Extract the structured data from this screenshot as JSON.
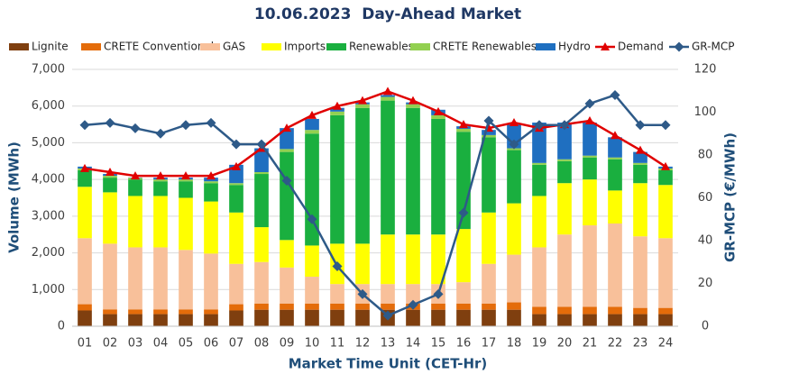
{
  "chart_data": {
    "type": "stacked-bar-line",
    "title": "10.06.2023  Day-Ahead Market",
    "x_label": "Market Time Unit (CET-Hr)",
    "y_label": "Volume (MWh)",
    "y2_label": "GR-MCP (€/MWh)",
    "categories": [
      "01",
      "02",
      "03",
      "04",
      "05",
      "06",
      "07",
      "08",
      "09",
      "10",
      "11",
      "12",
      "13",
      "14",
      "15",
      "16",
      "17",
      "18",
      "19",
      "20",
      "21",
      "22",
      "23",
      "24"
    ],
    "ylim": [
      0,
      7000
    ],
    "yticks": [
      0,
      {
        "value": 1000,
        "label": "1,000"
      },
      {
        "value": 2000,
        "label": "2,000"
      },
      {
        "value": 3000,
        "label": "3,000"
      },
      {
        "value": 4000,
        "label": "4,000"
      },
      {
        "value": 5000,
        "label": "5,000"
      },
      {
        "value": 6000,
        "label": "6,000"
      },
      {
        "value": 7000,
        "label": "7,000"
      }
    ],
    "y2lim": [
      0,
      120
    ],
    "y2ticks": [
      0,
      20,
      40,
      60,
      80,
      100,
      120
    ],
    "grid": true,
    "series": [
      {
        "name": "Lignite",
        "color": "#7f3f0f",
        "kind": "bar",
        "values": [
          430,
          330,
          330,
          330,
          330,
          330,
          430,
          450,
          450,
          450,
          450,
          450,
          450,
          450,
          450,
          450,
          450,
          450,
          330,
          330,
          330,
          330,
          330,
          330
        ]
      },
      {
        "name": "CRETE Conventional",
        "color": "#e46c0a",
        "kind": "bar",
        "values": [
          170,
          130,
          130,
          130,
          130,
          130,
          170,
          170,
          170,
          170,
          170,
          170,
          170,
          170,
          170,
          170,
          170,
          200,
          200,
          200,
          200,
          200,
          170,
          170
        ]
      },
      {
        "name": "GAS",
        "color": "#f8c09a",
        "kind": "bar",
        "values": [
          1800,
          1790,
          1690,
          1690,
          1620,
          1520,
          1100,
          1130,
          980,
          730,
          530,
          530,
          530,
          530,
          530,
          580,
          1080,
          1300,
          1620,
          1970,
          2220,
          2270,
          1950,
          1900
        ]
      },
      {
        "name": "Imports",
        "color": "#ffff00",
        "kind": "bar",
        "values": [
          1400,
          1400,
          1400,
          1400,
          1420,
          1420,
          1400,
          950,
          750,
          850,
          1100,
          1100,
          1350,
          1350,
          1350,
          1450,
          1400,
          1400,
          1400,
          1400,
          1250,
          900,
          1450,
          1450
        ]
      },
      {
        "name": "Renewables",
        "color": "#1aaf3f",
        "kind": "bar",
        "values": [
          450,
          400,
          450,
          400,
          450,
          500,
          750,
          1450,
          2400,
          3050,
          3500,
          3700,
          3650,
          3450,
          3150,
          2650,
          2050,
          1450,
          850,
          600,
          600,
          850,
          500,
          400
        ]
      },
      {
        "name": "CRETE Renewables",
        "color": "#92d050",
        "kind": "bar",
        "values": [
          50,
          50,
          40,
          50,
          50,
          50,
          50,
          50,
          80,
          100,
          100,
          100,
          100,
          100,
          100,
          80,
          60,
          50,
          50,
          50,
          50,
          50,
          50,
          50
        ]
      },
      {
        "name": "Hydro",
        "color": "#1f6fc0",
        "kind": "bar",
        "values": [
          50,
          50,
          10,
          50,
          50,
          100,
          500,
          650,
          570,
          300,
          100,
          50,
          50,
          50,
          150,
          70,
          140,
          650,
          1100,
          1000,
          900,
          550,
          300,
          50
        ]
      },
      {
        "name": "Demand",
        "color": "#e00000",
        "kind": "line",
        "marker": "triangle",
        "values": [
          4300,
          4200,
          4100,
          4100,
          4100,
          4100,
          4350,
          4850,
          5400,
          5750,
          6000,
          6150,
          6400,
          6150,
          5850,
          5500,
          5400,
          5550,
          5400,
          5500,
          5600,
          5200,
          4800,
          4350
        ]
      },
      {
        "name": "GR-MCP",
        "color": "#2e5a88",
        "kind": "line",
        "marker": "diamond",
        "axis": "y2",
        "values": [
          94,
          95,
          92.5,
          90,
          94,
          95,
          85,
          85,
          68,
          50,
          28,
          15,
          5,
          10,
          15,
          53,
          96,
          85,
          94,
          94,
          104,
          108,
          94,
          94
        ]
      }
    ]
  }
}
